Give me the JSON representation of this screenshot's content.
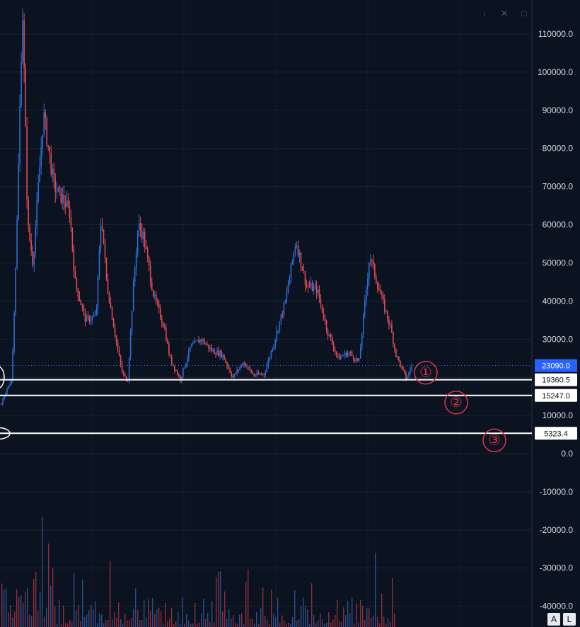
{
  "chart_data": {
    "type": "candlestick",
    "ylim": [
      -42000,
      120000
    ],
    "y_ticks": [
      "110000.0",
      "100000.0",
      "90000.0",
      "80000.0",
      "70000.0",
      "60000.0",
      "50000.0",
      "40000.0",
      "30000.0",
      "20000.0",
      "10000.0",
      "0.0",
      "-10000.0",
      "-20000.0",
      "-30000.0",
      "-40000.0"
    ],
    "y_tick_values": [
      110000,
      100000,
      90000,
      80000,
      70000,
      60000,
      50000,
      40000,
      30000,
      20000,
      10000,
      0,
      -10000,
      -20000,
      -30000,
      -40000
    ],
    "last_price": 23090.0,
    "last_price_label": "23090.0",
    "horizontal_levels": [
      {
        "value": 19360.5,
        "label": "19360.5",
        "marker": "①"
      },
      {
        "value": 15247.0,
        "label": "15247.0",
        "marker": "②"
      },
      {
        "value": 5323.4,
        "label": "5323.4",
        "marker": "③"
      }
    ],
    "price_path": [
      [
        0,
        13000
      ],
      [
        0.02,
        20000
      ],
      [
        0.03,
        62000
      ],
      [
        0.04,
        118000
      ],
      [
        0.05,
        60000
      ],
      [
        0.06,
        50000
      ],
      [
        0.08,
        89000
      ],
      [
        0.1,
        70000
      ],
      [
        0.12,
        66000
      ],
      [
        0.13,
        63000
      ],
      [
        0.14,
        45000
      ],
      [
        0.16,
        35000
      ],
      [
        0.18,
        36000
      ],
      [
        0.19,
        63000
      ],
      [
        0.2,
        45000
      ],
      [
        0.22,
        28000
      ],
      [
        0.23,
        21000
      ],
      [
        0.24,
        19000
      ],
      [
        0.25,
        42000
      ],
      [
        0.26,
        60000
      ],
      [
        0.27,
        57000
      ],
      [
        0.29,
        41000
      ],
      [
        0.31,
        33000
      ],
      [
        0.32,
        25000
      ],
      [
        0.34,
        19500
      ],
      [
        0.36,
        28000
      ],
      [
        0.38,
        30000
      ],
      [
        0.4,
        27000
      ],
      [
        0.42,
        26000
      ],
      [
        0.44,
        20000
      ],
      [
        0.46,
        24000
      ],
      [
        0.48,
        20500
      ],
      [
        0.5,
        21000
      ],
      [
        0.52,
        30000
      ],
      [
        0.54,
        40000
      ],
      [
        0.56,
        56000
      ],
      [
        0.58,
        44000
      ],
      [
        0.6,
        43000
      ],
      [
        0.62,
        32000
      ],
      [
        0.64,
        25000
      ],
      [
        0.66,
        26500
      ],
      [
        0.68,
        24000
      ],
      [
        0.7,
        52000
      ],
      [
        0.72,
        42000
      ],
      [
        0.74,
        33000
      ],
      [
        0.75,
        26000
      ],
      [
        0.77,
        19500
      ],
      [
        0.78,
        23000
      ]
    ]
  },
  "toolbar": {
    "icon1": "↓",
    "icon2": "✕",
    "icon3": "□"
  },
  "bottom_buttons": {
    "a": "A",
    "l": "L"
  }
}
